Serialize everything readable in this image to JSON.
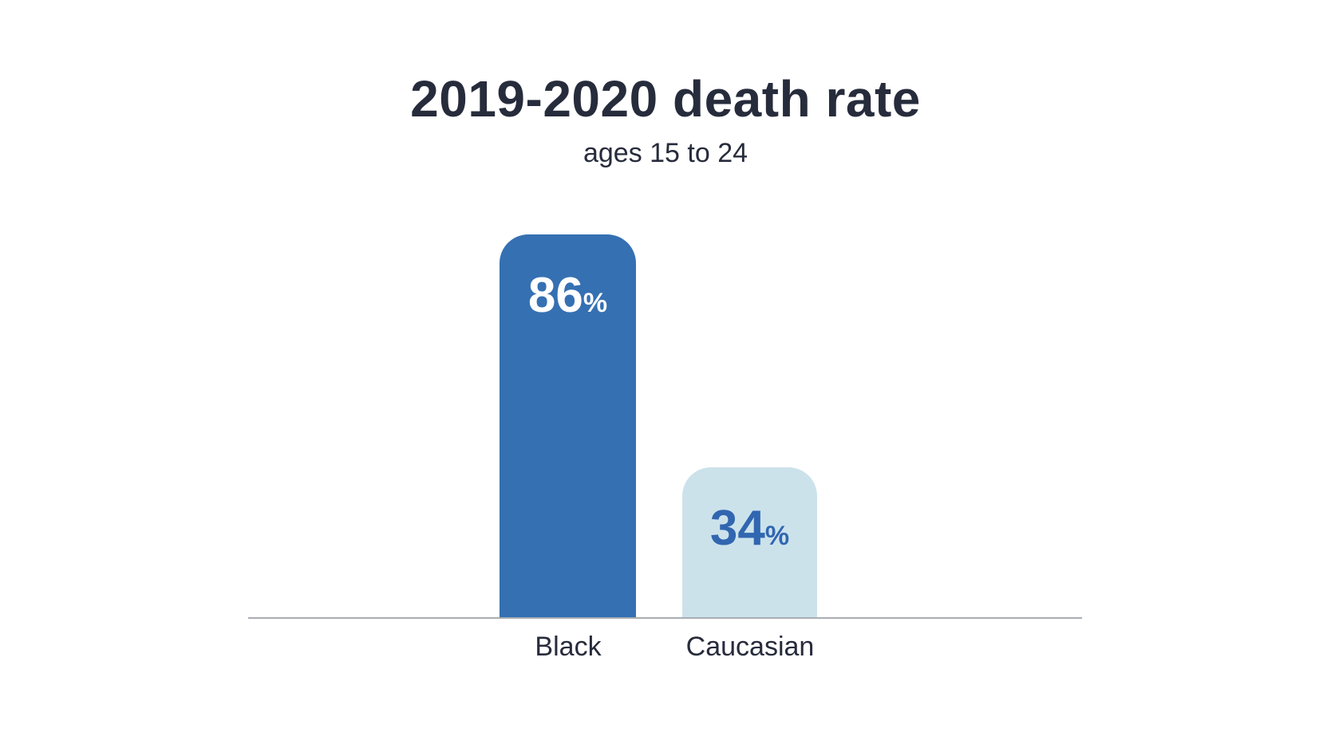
{
  "title": "2019-2020 death rate",
  "subtitle": "ages 15 to 24",
  "chart_data": {
    "type": "bar",
    "title": "2019-2020 death rate",
    "subtitle": "ages 15 to 24",
    "categories": [
      "Black",
      "Caucasian"
    ],
    "values": [
      86,
      34
    ],
    "unit": "%",
    "ylim": [
      0,
      100
    ],
    "grid": false,
    "legend": "none",
    "bar_colors": [
      "#3570B2",
      "#CCE2EB"
    ],
    "value_label_colors": [
      "#FFFFFF",
      "#3166B0"
    ]
  },
  "colors": {
    "background": "#FFFFFF",
    "text_dark": "#272C3C",
    "bar_primary": "#3570B2",
    "bar_secondary": "#CCE2EB",
    "value_on_primary": "#FFFFFF",
    "value_on_secondary": "#3166B0",
    "baseline": "#A9ADB3"
  }
}
